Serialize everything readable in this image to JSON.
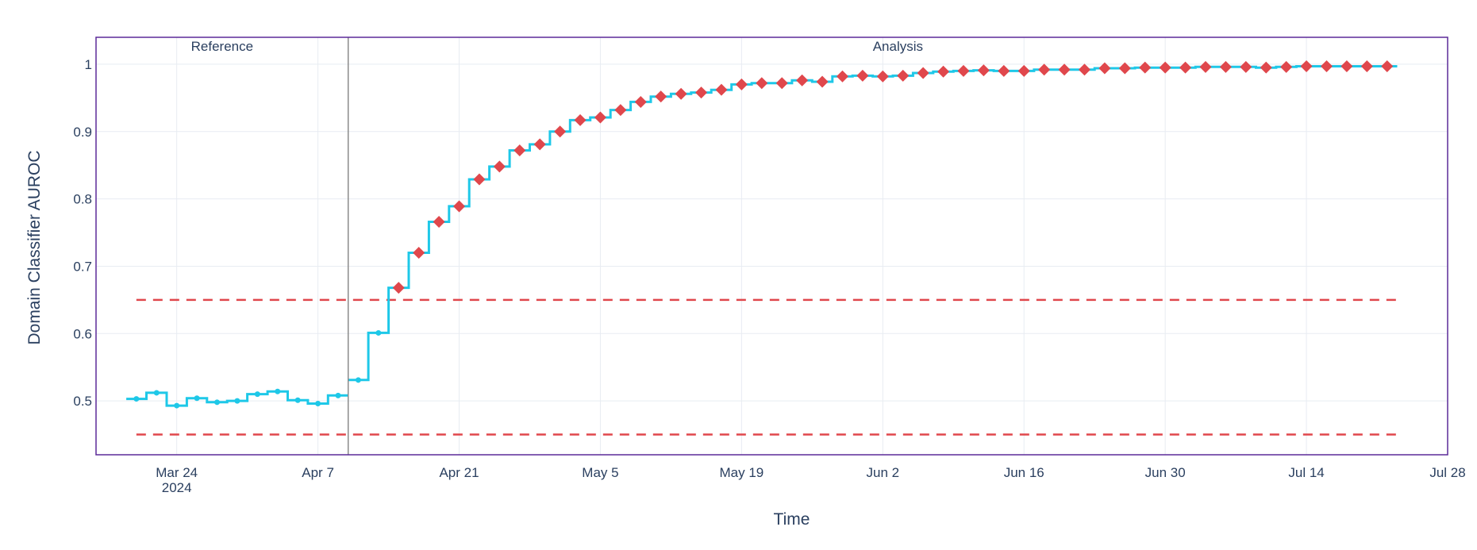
{
  "chart_data": {
    "type": "line",
    "xlabel": "Time",
    "ylabel": "Domain Classifier AUROC",
    "xlim": [
      "2024-03-16",
      "2024-07-28"
    ],
    "ylim": [
      0.42,
      1.04
    ],
    "x_ticks": [
      {
        "date": "2024-03-24",
        "label": "Mar 24",
        "sublabel": "2024"
      },
      {
        "date": "2024-04-07",
        "label": "Apr 7"
      },
      {
        "date": "2024-04-21",
        "label": "Apr 21"
      },
      {
        "date": "2024-05-05",
        "label": "May 5"
      },
      {
        "date": "2024-05-19",
        "label": "May 19"
      },
      {
        "date": "2024-06-02",
        "label": "Jun 2"
      },
      {
        "date": "2024-06-16",
        "label": "Jun 16"
      },
      {
        "date": "2024-06-30",
        "label": "Jun 30"
      },
      {
        "date": "2024-07-14",
        "label": "Jul 14"
      },
      {
        "date": "2024-07-28",
        "label": "Jul 28"
      }
    ],
    "y_ticks": [
      {
        "value": 0.5,
        "label": "0.5"
      },
      {
        "value": 0.6,
        "label": "0.6"
      },
      {
        "value": 0.7,
        "label": "0.7"
      },
      {
        "value": 0.8,
        "label": "0.8"
      },
      {
        "value": 0.9,
        "label": "0.9"
      },
      {
        "value": 1.0,
        "label": "1"
      }
    ],
    "grid": true,
    "sections": [
      {
        "label": "Reference",
        "start": "2024-03-20",
        "end": "2024-04-10"
      },
      {
        "label": "Analysis",
        "start": "2024-04-10",
        "end": "2024-07-23"
      }
    ],
    "thresholds": {
      "upper": 0.65,
      "lower": 0.45,
      "start": "2024-03-20",
      "end": "2024-07-23",
      "color": "#e0474c"
    },
    "line_color": "#1ec8e8",
    "alert_color": "#e0474c",
    "series": [
      {
        "period": "reference",
        "x": [
          "2024-03-20",
          "2024-03-22",
          "2024-03-24",
          "2024-03-26",
          "2024-03-28",
          "2024-03-30",
          "2024-04-01",
          "2024-04-03",
          "2024-04-05",
          "2024-04-07",
          "2024-04-09"
        ],
        "values": [
          0.503,
          0.512,
          0.493,
          0.504,
          0.498,
          0.5,
          0.51,
          0.514,
          0.501,
          0.496,
          0.508
        ],
        "alerts": [
          false,
          false,
          false,
          false,
          false,
          false,
          false,
          false,
          false,
          false,
          false
        ]
      },
      {
        "period": "analysis",
        "x": [
          "2024-04-11",
          "2024-04-13",
          "2024-04-15",
          "2024-04-17",
          "2024-04-19",
          "2024-04-21",
          "2024-04-23",
          "2024-04-25",
          "2024-04-27",
          "2024-04-29",
          "2024-05-01",
          "2024-05-03",
          "2024-05-05",
          "2024-05-07",
          "2024-05-09",
          "2024-05-11",
          "2024-05-13",
          "2024-05-15",
          "2024-05-17",
          "2024-05-19",
          "2024-05-21",
          "2024-05-23",
          "2024-05-25",
          "2024-05-27",
          "2024-05-29",
          "2024-05-31",
          "2024-06-02",
          "2024-06-04",
          "2024-06-06",
          "2024-06-08",
          "2024-06-10",
          "2024-06-12",
          "2024-06-14",
          "2024-06-16",
          "2024-06-18",
          "2024-06-20",
          "2024-06-22",
          "2024-06-24",
          "2024-06-26",
          "2024-06-28",
          "2024-06-30",
          "2024-07-02",
          "2024-07-04",
          "2024-07-06",
          "2024-07-08",
          "2024-07-10",
          "2024-07-12",
          "2024-07-14",
          "2024-07-16",
          "2024-07-18",
          "2024-07-20",
          "2024-07-22"
        ],
        "values": [
          0.531,
          0.601,
          0.668,
          0.72,
          0.766,
          0.789,
          0.829,
          0.848,
          0.872,
          0.881,
          0.9,
          0.917,
          0.921,
          0.932,
          0.944,
          0.952,
          0.956,
          0.958,
          0.962,
          0.97,
          0.972,
          0.972,
          0.976,
          0.974,
          0.982,
          0.983,
          0.982,
          0.983,
          0.987,
          0.989,
          0.99,
          0.991,
          0.99,
          0.99,
          0.992,
          0.992,
          0.992,
          0.994,
          0.994,
          0.995,
          0.995,
          0.995,
          0.996,
          0.996,
          0.996,
          0.995,
          0.996,
          0.997,
          0.997,
          0.997,
          0.997,
          0.997
        ],
        "alerts": [
          false,
          false,
          true,
          true,
          true,
          true,
          true,
          true,
          true,
          true,
          true,
          true,
          true,
          true,
          true,
          true,
          true,
          true,
          true,
          true,
          true,
          true,
          true,
          true,
          true,
          true,
          true,
          true,
          true,
          true,
          true,
          true,
          true,
          true,
          true,
          true,
          true,
          true,
          true,
          true,
          true,
          true,
          true,
          true,
          true,
          true,
          true,
          true,
          true,
          true,
          true,
          true
        ]
      }
    ]
  }
}
